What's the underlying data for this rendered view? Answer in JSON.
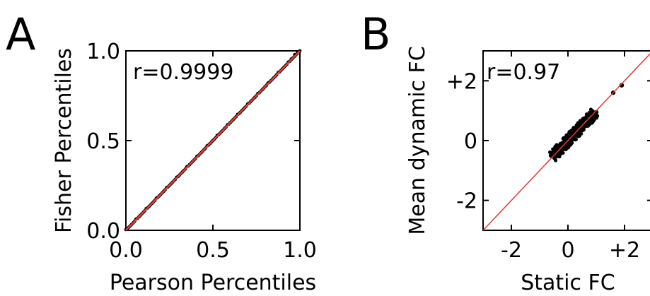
{
  "chart_data": [
    {
      "panel": "A",
      "type": "scatter",
      "xlabel": "Pearson Percentiles",
      "ylabel": "Fisher Percentiles",
      "xlim": [
        0,
        1
      ],
      "ylim": [
        0,
        1
      ],
      "xticks": [
        "0.0",
        "0.5",
        "1.0"
      ],
      "yticks": [
        "0.0",
        "0.5",
        "1.0"
      ],
      "xtick_values": [
        0,
        0.5,
        1
      ],
      "ytick_values": [
        0,
        0.5,
        1
      ],
      "annotation": "r=0.9999",
      "fit_line": {
        "x": [
          0,
          1
        ],
        "y": [
          0,
          1
        ],
        "color": "#d9413a"
      },
      "points": {
        "x": [
          0.02,
          0.08,
          0.15,
          0.22,
          0.3,
          0.38,
          0.45,
          0.52,
          0.6,
          0.67,
          0.74,
          0.8,
          0.86,
          0.91,
          0.95,
          0.97,
          0.985
        ],
        "y": [
          0.02,
          0.08,
          0.15,
          0.22,
          0.3,
          0.38,
          0.45,
          0.52,
          0.6,
          0.67,
          0.74,
          0.8,
          0.86,
          0.91,
          0.955,
          0.98,
          0.99
        ]
      },
      "point_color": "#000000",
      "grid": false
    },
    {
      "panel": "B",
      "type": "scatter",
      "xlabel": "Static FC",
      "ylabel": "Mean dynamic FC",
      "xlim": [
        -3,
        3
      ],
      "ylim": [
        -3,
        3
      ],
      "xticks": [
        "-2",
        "0",
        "+2"
      ],
      "yticks": [
        "-2",
        "0",
        "+2"
      ],
      "xtick_values": [
        -2,
        0,
        2
      ],
      "ytick_values": [
        -2,
        0,
        2
      ],
      "annotation": "r=0.97",
      "fit_line": {
        "x": [
          -3,
          3
        ],
        "y": [
          -3,
          3
        ],
        "color": "#e03a32"
      },
      "points": {
        "x": [
          -0.6,
          -0.5,
          -0.45,
          -0.4,
          -0.3,
          -0.2,
          -0.1,
          0.0,
          0.1,
          0.2,
          0.3,
          0.4,
          0.5,
          0.6,
          0.7,
          0.8,
          0.9,
          1.0,
          -0.35,
          0.05,
          0.35,
          0.65,
          1.6,
          1.9
        ],
        "y": [
          -0.5,
          -0.35,
          -0.55,
          -0.3,
          -0.2,
          -0.25,
          -0.05,
          0.0,
          0.15,
          0.1,
          0.3,
          0.35,
          0.45,
          0.55,
          0.6,
          0.75,
          0.85,
          0.95,
          -0.45,
          -0.1,
          0.2,
          0.5,
          1.6,
          1.85
        ]
      },
      "point_color": "#000000",
      "grid": false
    }
  ]
}
